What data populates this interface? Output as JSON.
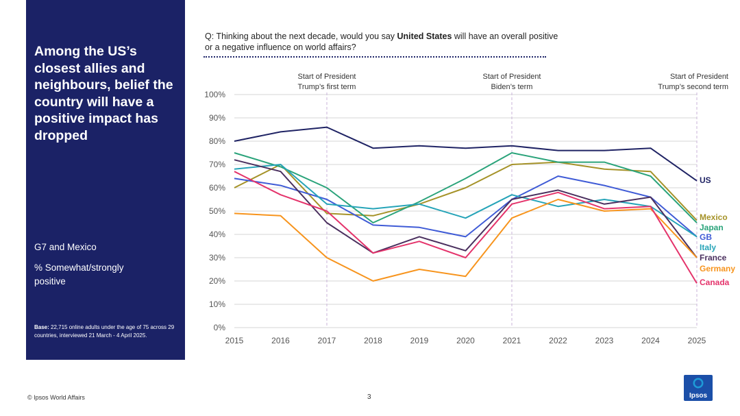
{
  "sidebar": {
    "title": "Among the US’s closest allies and neighbours, belief the country will have a positive impact has dropped",
    "group": "G7 and Mexico",
    "measure": "% Somewhat/strongly positive",
    "base_label": "Base:",
    "base_text": " 22,715 online adults under the age of 75 across 29 countries, interviewed 21 March - 4 April 2025."
  },
  "question": {
    "prefix": "Q: Thinking about the next decade, would you say ",
    "bold": "United States",
    "suffix": " will have an overall positive or a negative influence on world affairs?"
  },
  "footer": {
    "copyright": "© Ipsos World Affairs",
    "page": "3"
  },
  "logo": {
    "text": "Ipsos",
    "color": "#1b4fa8"
  },
  "chart_data": {
    "type": "line",
    "x": [
      "2015",
      "2016",
      "2017",
      "2018",
      "2019",
      "2020",
      "2021",
      "2022",
      "2023",
      "2024",
      "2025"
    ],
    "y_ticks": [
      "0%",
      "10%",
      "20%",
      "30%",
      "40%",
      "50%",
      "60%",
      "70%",
      "80%",
      "90%",
      "100%"
    ],
    "ylim": [
      0,
      100
    ],
    "grid": true,
    "annotations": [
      {
        "x": "2017",
        "lines": [
          "Start of President",
          "Trump’s first term"
        ]
      },
      {
        "x": "2021",
        "lines": [
          "Start of President",
          "Biden’s term"
        ]
      },
      {
        "x": "2025",
        "lines": [
          "Start of President",
          "Trump’s second term"
        ]
      }
    ],
    "series": [
      {
        "name": "US",
        "color": "#1f2364",
        "values": [
          80,
          84,
          86,
          77,
          78,
          77,
          78,
          76,
          76,
          77,
          63
        ]
      },
      {
        "name": "Mexico",
        "color": "#a59228",
        "values": [
          60,
          70,
          49,
          48,
          53,
          60,
          70,
          71,
          68,
          67,
          46
        ]
      },
      {
        "name": "Japan",
        "color": "#2aa37a",
        "values": [
          75,
          69,
          60,
          45,
          54,
          64,
          75,
          71,
          71,
          65,
          45
        ]
      },
      {
        "name": "GB",
        "color": "#3f5bd6",
        "values": [
          64,
          61,
          55,
          44,
          43,
          39,
          55,
          65,
          61,
          56,
          39
        ]
      },
      {
        "name": "Italy",
        "color": "#26a4b8",
        "values": [
          68,
          70,
          53,
          51,
          53,
          47,
          57,
          52,
          55,
          52,
          39
        ]
      },
      {
        "name": "France",
        "color": "#4a2f5e",
        "values": [
          72,
          67,
          45,
          32,
          39,
          33,
          55,
          59,
          53,
          56,
          30
        ]
      },
      {
        "name": "Germany",
        "color": "#f7941d",
        "values": [
          49,
          48,
          30,
          20,
          25,
          22,
          47,
          55,
          50,
          51,
          30
        ]
      },
      {
        "name": "Canada",
        "color": "#e4336b",
        "values": [
          67,
          57,
          50,
          32,
          37,
          30,
          53,
          58,
          51,
          52,
          19
        ]
      }
    ],
    "legend_labels": [
      "US",
      "Mexico",
      "Japan",
      "GB",
      "Italy",
      "France",
      "Germany",
      "Canada"
    ]
  }
}
